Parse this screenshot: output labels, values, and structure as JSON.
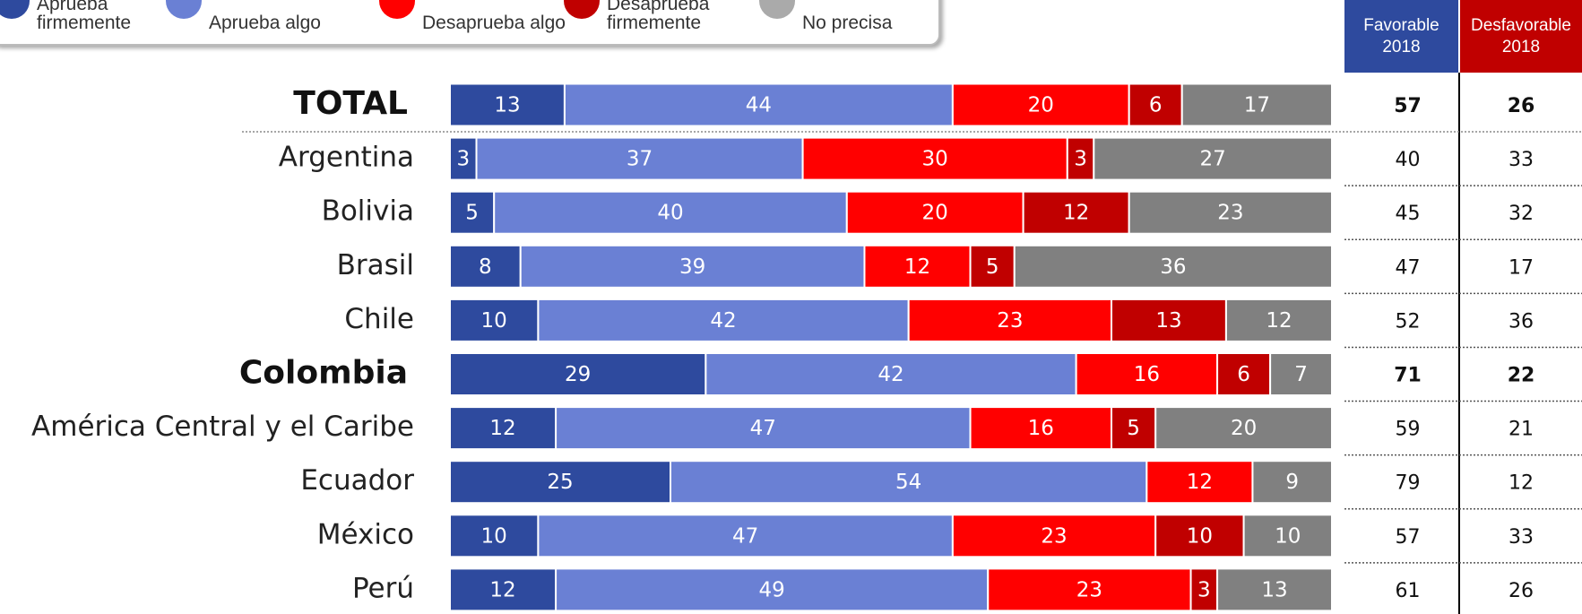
{
  "chart_data": {
    "type": "stacked-bar",
    "orientation": "horizontal",
    "categories": [
      "TOTAL",
      "Argentina",
      "Bolivia",
      "Brasil",
      "Chile",
      "Colombia",
      "América Central y el Caribe",
      "Ecuador",
      "México",
      "Perú"
    ],
    "highlight": [
      0,
      5
    ],
    "xlim": [
      0,
      100
    ],
    "series": [
      {
        "name": "Aprueba firmemente",
        "color": "#2e4a9e",
        "values": [
          13,
          3,
          5,
          8,
          10,
          29,
          12,
          25,
          10,
          12
        ]
      },
      {
        "name": "Aprueba algo",
        "color": "#6a80d4",
        "values": [
          44,
          37,
          40,
          39,
          42,
          42,
          47,
          54,
          47,
          49
        ]
      },
      {
        "name": "Desaprueba algo",
        "color": "#ff0000",
        "values": [
          20,
          30,
          20,
          12,
          23,
          16,
          16,
          12,
          23,
          23
        ]
      },
      {
        "name": "Desaprueba firmemente",
        "color": "#c00000",
        "values": [
          6,
          3,
          12,
          5,
          13,
          6,
          5,
          0,
          10,
          3
        ]
      },
      {
        "name": "No precisa",
        "color": "#808080",
        "values": [
          17,
          27,
          23,
          36,
          12,
          7,
          20,
          9,
          10,
          13
        ]
      }
    ],
    "table": {
      "columns": [
        {
          "name": "Favorable",
          "year": "2018",
          "color": "#2e4a9e",
          "values": [
            57,
            40,
            45,
            47,
            52,
            71,
            59,
            79,
            57,
            61
          ]
        },
        {
          "name": "Desfavorable",
          "year": "2018",
          "color": "#c00000",
          "values": [
            26,
            33,
            32,
            17,
            36,
            22,
            21,
            12,
            33,
            26
          ]
        }
      ]
    }
  }
}
